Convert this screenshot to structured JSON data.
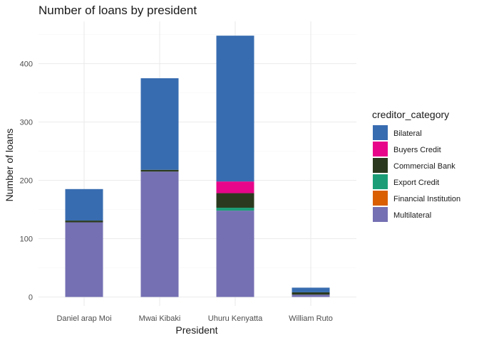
{
  "chart_data": {
    "type": "bar",
    "stacked": true,
    "title": "Number of loans by president",
    "xlabel": "President",
    "ylabel": "Number of loans",
    "categories": [
      "Daniel arap Moi",
      "Mwai Kibaki",
      "Uhuru Kenyatta",
      "William Ruto"
    ],
    "ylim": [
      0,
      450
    ],
    "yticks": [
      0,
      100,
      200,
      300,
      400
    ],
    "legend_title": "creditor_category",
    "legend_position": "right",
    "grid": true,
    "series": [
      {
        "name": "Multilateral",
        "color": "#7570b3",
        "values": [
          128,
          215,
          148,
          4
        ]
      },
      {
        "name": "Financial Institution",
        "color": "#d95f02",
        "values": [
          0,
          0,
          0,
          0
        ]
      },
      {
        "name": "Export Credit",
        "color": "#1b9e77",
        "values": [
          0,
          0,
          5,
          0
        ]
      },
      {
        "name": "Commercial Bank",
        "color": "#2b3a1e",
        "values": [
          3,
          3,
          25,
          4
        ]
      },
      {
        "name": "Buyers Credit",
        "color": "#e7068a",
        "values": [
          0,
          0,
          20,
          0
        ]
      },
      {
        "name": "Bilateral",
        "color": "#386cb0",
        "values": [
          54,
          157,
          250,
          8
        ]
      }
    ],
    "legend_order": [
      "Bilateral",
      "Buyers Credit",
      "Commercial Bank",
      "Export Credit",
      "Financial Institution",
      "Multilateral"
    ]
  }
}
